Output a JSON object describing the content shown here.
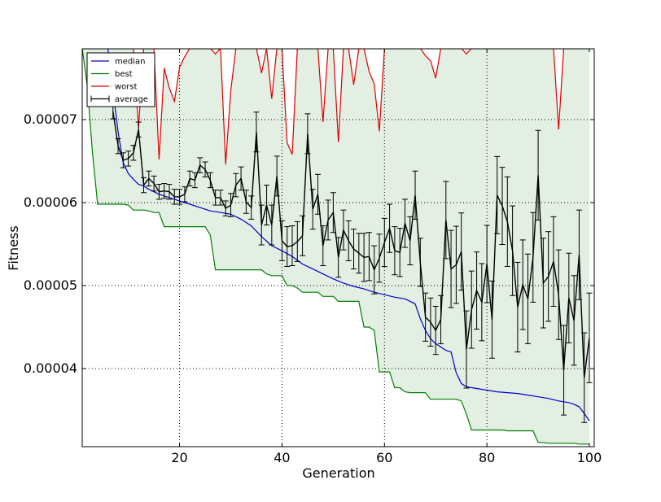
{
  "chart_data": {
    "type": "line",
    "title": "",
    "xlabel": "Generation",
    "ylabel": "Fitness",
    "xlim": [
      1,
      100
    ],
    "ylim": [
      3.09e-05,
      7.86e-05
    ],
    "grid": true,
    "legend_position": "top-left",
    "x_ticks": [
      {
        "value": 20,
        "label": "20"
      },
      {
        "value": 40,
        "label": "40"
      },
      {
        "value": 60,
        "label": "60"
      },
      {
        "value": 80,
        "label": "80"
      },
      {
        "value": 100,
        "label": "100"
      }
    ],
    "y_ticks": [
      {
        "value": 4e-05,
        "label": "0.00004"
      },
      {
        "value": 5e-05,
        "label": "0.00005"
      },
      {
        "value": 6e-05,
        "label": "0.00006"
      },
      {
        "value": 7e-05,
        "label": "0.00007"
      }
    ],
    "legend": [
      {
        "label": "median",
        "color": "#0000cc",
        "kind": "line"
      },
      {
        "label": "best",
        "color": "#007f00",
        "kind": "line"
      },
      {
        "label": "worst",
        "color": "#dd0000",
        "kind": "line"
      },
      {
        "label": "average",
        "color": "#000000",
        "kind": "errorbar"
      }
    ],
    "fill_color": "#e2efe2",
    "series": [
      {
        "name": "median",
        "color": "#0000cc",
        "x": [
          6,
          7,
          8,
          9,
          10,
          11,
          12,
          13,
          14,
          15,
          16,
          17,
          18,
          19,
          20,
          22,
          24,
          26,
          28,
          30,
          32,
          34,
          36,
          38,
          40,
          42,
          44,
          46,
          48,
          50,
          52,
          54,
          56,
          58,
          60,
          62,
          64,
          66,
          67,
          68,
          69,
          70,
          71,
          72,
          73,
          74,
          75,
          76,
          78,
          80,
          82,
          84,
          86,
          88,
          90,
          92,
          94,
          96,
          97,
          98,
          99,
          100
        ],
        "y": [
          7.86e-05,
          7.35e-05,
          6.85e-05,
          6.48e-05,
          6.35e-05,
          6.28e-05,
          6.22e-05,
          6.2e-05,
          6.16e-05,
          6.13e-05,
          6.1e-05,
          6.08e-05,
          6.06e-05,
          6.04e-05,
          6.02e-05,
          5.98e-05,
          5.94e-05,
          5.9e-05,
          5.88e-05,
          5.86e-05,
          5.8e-05,
          5.72e-05,
          5.59e-05,
          5.48e-05,
          5.42e-05,
          5.35e-05,
          5.26e-05,
          5.2e-05,
          5.14e-05,
          5.08e-05,
          5.03e-05,
          4.99e-05,
          4.96e-05,
          4.92e-05,
          4.89e-05,
          4.86e-05,
          4.84e-05,
          4.78e-05,
          4.6e-05,
          4.46e-05,
          4.36e-05,
          4.3e-05,
          4.26e-05,
          4.22e-05,
          4.2e-05,
          3.95e-05,
          3.82e-05,
          3.78e-05,
          3.76e-05,
          3.74e-05,
          3.72e-05,
          3.71e-05,
          3.7e-05,
          3.68e-05,
          3.66e-05,
          3.64e-05,
          3.61e-05,
          3.59e-05,
          3.57e-05,
          3.54e-05,
          3.46e-05,
          3.37e-05
        ]
      },
      {
        "name": "best",
        "color": "#007f00",
        "x": [
          1,
          2,
          3,
          4,
          5,
          6,
          7,
          8,
          9,
          10,
          11,
          12,
          13,
          14,
          15,
          16,
          17,
          18,
          19,
          20,
          21,
          22,
          23,
          24,
          25,
          26,
          27,
          28,
          29,
          30,
          31,
          32,
          33,
          34,
          35,
          36,
          37,
          38,
          39,
          40,
          41,
          42,
          43,
          44,
          45,
          46,
          47,
          48,
          49,
          50,
          51,
          52,
          53,
          54,
          55,
          56,
          57,
          58,
          59,
          60,
          61,
          62,
          63,
          64,
          65,
          66,
          67,
          68,
          69,
          70,
          71,
          72,
          73,
          74,
          75,
          76,
          77,
          78,
          79,
          80,
          81,
          82,
          83,
          84,
          85,
          86,
          87,
          88,
          89,
          90,
          91,
          92,
          93,
          94,
          95,
          96,
          97,
          98,
          99,
          100
        ],
        "y": [
          7.86e-05,
          7.4e-05,
          6.6e-05,
          5.98e-05,
          5.98e-05,
          5.98e-05,
          5.98e-05,
          5.98e-05,
          5.98e-05,
          5.97e-05,
          5.91e-05,
          5.91e-05,
          5.91e-05,
          5.9e-05,
          5.88e-05,
          5.88e-05,
          5.71e-05,
          5.71e-05,
          5.71e-05,
          5.71e-05,
          5.71e-05,
          5.71e-05,
          5.71e-05,
          5.71e-05,
          5.71e-05,
          5.61e-05,
          5.19e-05,
          5.19e-05,
          5.19e-05,
          5.19e-05,
          5.19e-05,
          5.19e-05,
          5.19e-05,
          5.19e-05,
          5.19e-05,
          5.19e-05,
          5.14e-05,
          5.12e-05,
          5.12e-05,
          5.12e-05,
          5e-05,
          5e-05,
          4.97e-05,
          4.92e-05,
          4.92e-05,
          4.92e-05,
          4.92e-05,
          4.87e-05,
          4.87e-05,
          4.87e-05,
          4.81e-05,
          4.81e-05,
          4.81e-05,
          4.81e-05,
          4.81e-05,
          4.5e-05,
          4.5e-05,
          4.46e-05,
          3.96e-05,
          3.96e-05,
          3.96e-05,
          3.77e-05,
          3.77e-05,
          3.72e-05,
          3.71e-05,
          3.71e-05,
          3.71e-05,
          3.71e-05,
          3.63e-05,
          3.63e-05,
          3.63e-05,
          3.63e-05,
          3.63e-05,
          3.63e-05,
          3.61e-05,
          3.45e-05,
          3.26e-05,
          3.26e-05,
          3.26e-05,
          3.26e-05,
          3.26e-05,
          3.26e-05,
          3.26e-05,
          3.25e-05,
          3.25e-05,
          3.25e-05,
          3.25e-05,
          3.25e-05,
          3.25e-05,
          3.11e-05,
          3.11e-05,
          3.1e-05,
          3.1e-05,
          3.1e-05,
          3.1e-05,
          3.1e-05,
          3.1e-05,
          3.09e-05,
          3.09e-05,
          3.09e-05
        ]
      },
      {
        "name": "worst",
        "color": "#dd0000",
        "x": [
          11,
          12,
          13,
          14,
          15,
          16,
          17,
          18,
          19,
          20,
          21,
          22,
          23,
          26,
          27,
          28,
          29,
          30,
          31,
          34,
          35,
          36,
          37,
          38,
          39,
          40,
          41,
          42,
          43,
          47,
          48,
          49,
          50,
          51,
          52,
          53,
          54,
          55,
          56,
          57,
          58,
          59,
          60,
          67,
          68,
          69,
          70,
          71,
          75,
          76,
          77,
          93,
          94,
          95
        ],
        "y": [
          7.86e-05,
          6.9e-05,
          7.86e-05,
          7.86e-05,
          7.86e-05,
          6.52e-05,
          7.62e-05,
          7.38e-05,
          7.22e-05,
          7.63e-05,
          7.76e-05,
          7.86e-05,
          7.86e-05,
          7.86e-05,
          7.79e-05,
          7.86e-05,
          6.46e-05,
          7.35e-05,
          7.86e-05,
          7.86e-05,
          7.86e-05,
          7.56e-05,
          7.86e-05,
          7.25e-05,
          7.86e-05,
          7.86e-05,
          6.72e-05,
          6.58e-05,
          7.86e-05,
          7.86e-05,
          6.97e-05,
          7.86e-05,
          7.86e-05,
          6.73e-05,
          7.86e-05,
          7.86e-05,
          7.42e-05,
          7.86e-05,
          7.86e-05,
          7.58e-05,
          7.43e-05,
          6.86e-05,
          7.86e-05,
          7.86e-05,
          7.77e-05,
          7.71e-05,
          7.5e-05,
          7.86e-05,
          7.86e-05,
          7.79e-05,
          7.86e-05,
          7.86e-05,
          6.88e-05,
          7.86e-05
        ]
      },
      {
        "name": "average",
        "color": "#000000",
        "errorbar": true,
        "x": [
          7,
          8,
          9,
          10,
          11,
          12,
          13,
          14,
          15,
          16,
          17,
          18,
          19,
          20,
          21,
          22,
          23,
          24,
          25,
          26,
          27,
          28,
          29,
          30,
          31,
          32,
          33,
          34,
          35,
          36,
          37,
          38,
          39,
          40,
          41,
          42,
          43,
          44,
          45,
          46,
          47,
          48,
          49,
          50,
          51,
          52,
          53,
          54,
          55,
          56,
          57,
          58,
          59,
          60,
          61,
          62,
          63,
          64,
          65,
          66,
          67,
          68,
          69,
          70,
          71,
          72,
          73,
          74,
          75,
          76,
          77,
          78,
          79,
          80,
          81,
          82,
          83,
          84,
          85,
          86,
          87,
          88,
          89,
          90,
          91,
          92,
          93,
          94,
          95,
          96,
          97,
          98,
          99,
          100
        ],
        "y": [
          7.1e-05,
          6.68e-05,
          6.51e-05,
          6.53e-05,
          6.6e-05,
          6.88e-05,
          6.21e-05,
          6.29e-05,
          6.23e-05,
          6.13e-05,
          6.14e-05,
          6.13e-05,
          6.07e-05,
          6.07e-05,
          6.1e-05,
          6.29e-05,
          6.27e-05,
          6.45e-05,
          6.4e-05,
          6.27e-05,
          6.06e-05,
          6.06e-05,
          5.93e-05,
          5.97e-05,
          6.21e-05,
          6.29e-05,
          6.01e-05,
          5.94e-05,
          6.85e-05,
          5.73e-05,
          5.97e-05,
          5.73e-05,
          6.32e-05,
          5.54e-05,
          5.47e-05,
          5.48e-05,
          5.53e-05,
          5.6e-05,
          6.83e-05,
          5.92e-05,
          6.1e-05,
          5.48e-05,
          5.79e-05,
          5.88e-05,
          5.34e-05,
          5.67e-05,
          5.54e-05,
          5.44e-05,
          5.39e-05,
          5.34e-05,
          5.35e-05,
          5.19e-05,
          5.33e-05,
          5.52e-05,
          5.69e-05,
          5.42e-05,
          5.4e-05,
          5.75e-05,
          5.54e-05,
          6.09e-05,
          5.28e-05,
          4.62e-05,
          4.56e-05,
          4.46e-05,
          4.59e-05,
          5.79e-05,
          5.2e-05,
          5.25e-05,
          5.41e-05,
          4.23e-05,
          4.71e-05,
          4.94e-05,
          4.8e-05,
          5.26e-05,
          4.59e-05,
          6.09e-05,
          5.96e-05,
          5.77e-05,
          5.42e-05,
          4.74e-05,
          5.01e-05,
          4.84e-05,
          5.34e-05,
          6.33e-05,
          5.03e-05,
          5.11e-05,
          5.29e-05,
          4.89e-05,
          3.98e-05,
          4.85e-05,
          4.58e-05,
          5.37e-05,
          3.89e-05,
          4.37e-05
        ]
      }
    ]
  }
}
